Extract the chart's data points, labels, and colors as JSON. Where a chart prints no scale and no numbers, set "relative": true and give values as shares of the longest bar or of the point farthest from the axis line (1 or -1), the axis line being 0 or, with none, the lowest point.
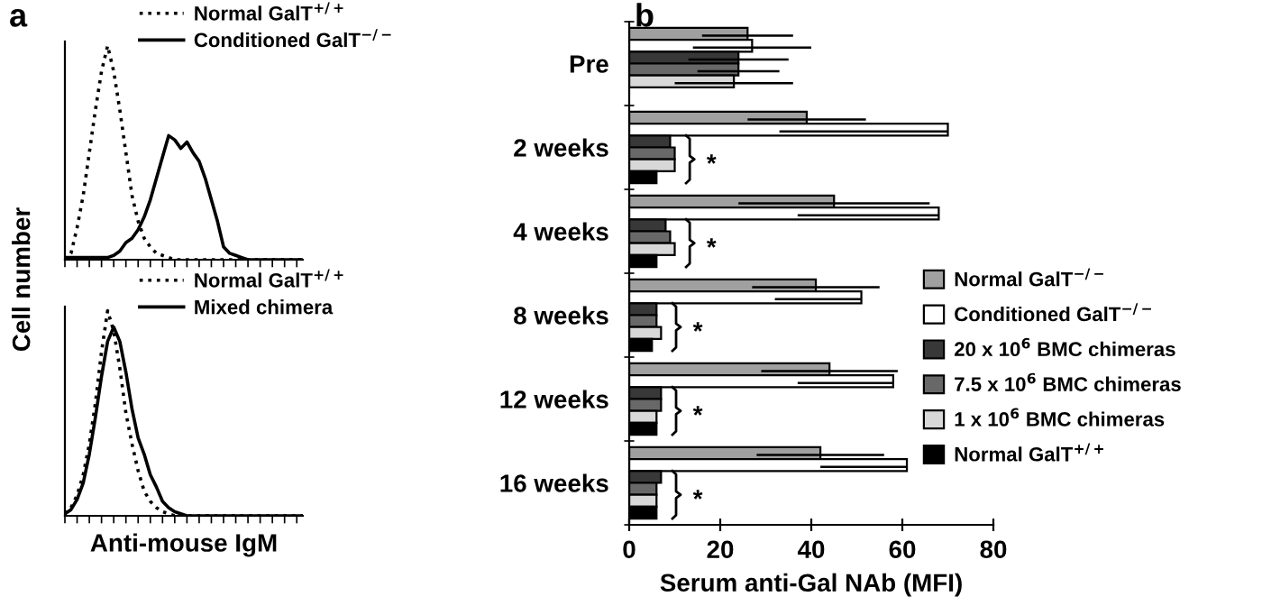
{
  "chart_data": [
    {
      "type": "line",
      "relative": true,
      "tick_labels": false,
      "ylabel": "Cell number",
      "legend": "top right",
      "annotations": [
        "a"
      ],
      "categories": [
        null,
        null,
        null,
        null,
        null,
        null,
        null,
        null,
        null,
        null,
        null,
        null,
        null,
        null,
        null,
        null,
        null,
        null,
        null,
        null,
        null,
        null,
        null,
        null,
        null,
        null,
        null,
        null,
        null,
        null,
        null,
        null,
        null,
        null,
        null,
        null,
        null,
        null,
        null,
        null
      ],
      "series": [
        {
          "name": "Normal GalT$^{+/+}$",
          "color": "#000000",
          "line_style": "dotted",
          "values": [
            0,
            0.03,
            0.15,
            0.3,
            0.5,
            0.7,
            0.88,
            1.0,
            0.88,
            0.7,
            0.5,
            0.3,
            0.18,
            0.1,
            0.06,
            0.03,
            0.02,
            0.01,
            0,
            0,
            0,
            0,
            0,
            0,
            0,
            0,
            0,
            0,
            0,
            0,
            0,
            0,
            0,
            0,
            0,
            0,
            0,
            0,
            0,
            0
          ]
        },
        {
          "name": "Conditioned GalT$^{−/−}$",
          "color": "#000000",
          "line_style": "solid",
          "values": [
            0.01,
            0.01,
            0.01,
            0.01,
            0.01,
            0.01,
            0.01,
            0.01,
            0.02,
            0.04,
            0.08,
            0.1,
            0.14,
            0.2,
            0.28,
            0.38,
            0.48,
            0.58,
            0.56,
            0.52,
            0.55,
            0.5,
            0.46,
            0.38,
            0.28,
            0.18,
            0.06,
            0.03,
            0.02,
            0.01,
            0,
            0,
            0,
            0,
            0,
            0,
            0,
            0,
            0,
            0
          ]
        }
      ]
    },
    {
      "type": "line",
      "relative": true,
      "tick_labels": false,
      "xlabel": "Anti-mouse IgM",
      "legend": "top right",
      "categories": [
        null,
        null,
        null,
        null,
        null,
        null,
        null,
        null,
        null,
        null,
        null,
        null,
        null,
        null,
        null,
        null,
        null,
        null,
        null,
        null,
        null,
        null,
        null,
        null,
        null,
        null,
        null,
        null,
        null,
        null,
        null,
        null,
        null,
        null,
        null,
        null,
        null,
        null,
        null,
        null
      ],
      "series": [
        {
          "name": "Normal GalT$^{+/+}$",
          "color": "#000000",
          "line_style": "dotted",
          "values": [
            0.01,
            0.04,
            0.1,
            0.2,
            0.35,
            0.55,
            0.8,
            1.0,
            0.9,
            0.72,
            0.5,
            0.35,
            0.22,
            0.12,
            0.07,
            0.04,
            0.02,
            0.01,
            0,
            0,
            0,
            0,
            0,
            0,
            0,
            0,
            0,
            0,
            0,
            0,
            0,
            0,
            0,
            0,
            0,
            0,
            0,
            0,
            0,
            0
          ]
        },
        {
          "name": "Mixed chimera",
          "color": "#000000",
          "line_style": "solid",
          "values": [
            0.01,
            0.03,
            0.08,
            0.16,
            0.3,
            0.48,
            0.68,
            0.85,
            0.92,
            0.85,
            0.7,
            0.52,
            0.38,
            0.3,
            0.2,
            0.14,
            0.07,
            0.04,
            0.02,
            0.01,
            0,
            0,
            0,
            0,
            0,
            0,
            0,
            0,
            0,
            0,
            0,
            0,
            0,
            0,
            0,
            0,
            0,
            0,
            0,
            0
          ]
        }
      ]
    },
    {
      "type": "bar",
      "orientation": "horizontal",
      "xlabel": "Serum anti-Gal NAb (MFI)",
      "xlim": [
        0,
        80
      ],
      "xticks": [
        0,
        20,
        40,
        60,
        80
      ],
      "legend": "right",
      "categories": [
        "Pre",
        "2 weeks",
        "4 weeks",
        "8 weeks",
        "12 weeks",
        "16 weeks"
      ],
      "annotations": [
        "b",
        "*",
        "*",
        "*",
        "*",
        "*"
      ],
      "series": [
        {
          "name": "Normal GalT$^{−/−}$",
          "color": "#a0a0a0",
          "values": [
            26,
            39,
            45,
            41,
            44,
            42
          ],
          "errors": [
            10,
            13,
            21,
            14,
            15,
            14
          ]
        },
        {
          "name": "Conditioned GalT$^{−/−}$",
          "color": "#ffffff",
          "values": [
            27,
            70,
            68,
            51,
            58,
            61
          ],
          "errors": [
            13,
            [
              33,
              70
            ],
            [
              37,
              68
            ],
            [
              32,
              51
            ],
            [
              37,
              58
            ],
            [
              42,
              61
            ]
          ]
        },
        {
          "name": "20 x 10$^{6}$ BMC chimeras",
          "color": "#383838",
          "values": [
            24,
            9,
            8,
            6,
            7,
            7
          ],
          "errors": [
            11,
            null,
            null,
            null,
            null,
            null
          ]
        },
        {
          "name": "7.5 x 10$^{6}$ BMC chimeras",
          "color": "#686868",
          "values": [
            24,
            10,
            9,
            6,
            7,
            6
          ],
          "errors": [
            9,
            null,
            null,
            null,
            null,
            null
          ]
        },
        {
          "name": "1 x 10$^{6}$ BMC chimeras",
          "color": "#d8d8d8",
          "values": [
            23,
            10,
            10,
            7,
            6,
            6
          ],
          "errors": [
            13,
            null,
            null,
            null,
            null,
            null
          ]
        },
        {
          "name": "Normal GalT$^{+/+}$",
          "color": "#000000",
          "values": [
            null,
            6,
            6,
            5,
            6,
            6
          ]
        }
      ]
    }
  ]
}
